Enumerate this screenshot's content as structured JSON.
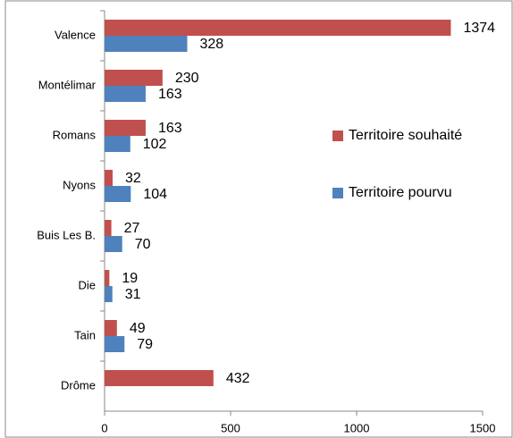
{
  "chart_data": {
    "type": "bar",
    "orientation": "horizontal",
    "categories": [
      "Valence",
      "Montélimar",
      "Romans",
      "Nyons",
      "Buis Les B.",
      "Die",
      "Tain",
      "Drôme"
    ],
    "series": [
      {
        "name": "Territoire souhaité",
        "color": "#c0504d",
        "values": [
          1374,
          230,
          163,
          32,
          27,
          19,
          49,
          432
        ]
      },
      {
        "name": "Territoire pourvu",
        "color": "#4f81bd",
        "values": [
          328,
          163,
          102,
          104,
          70,
          31,
          79,
          null
        ]
      }
    ],
    "xlim": [
      0,
      1500
    ],
    "xticks": [
      0,
      500,
      1000,
      1500
    ],
    "grid": false,
    "legend": "right"
  }
}
